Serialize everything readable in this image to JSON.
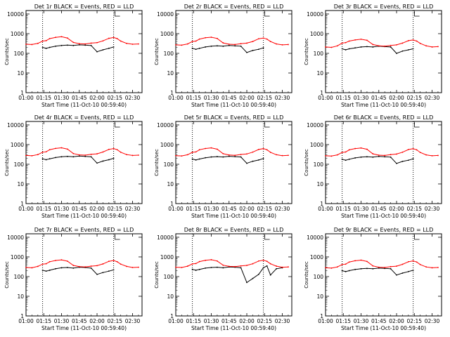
{
  "figure": {
    "background": "#ffffff",
    "events_color": "#000000",
    "lld_color": "#ff0000"
  },
  "chart_data": [
    {
      "type": "line",
      "title": "Det 1r BLACK = Events, RED = LLD",
      "xlabel": "Start Time (11-Oct-10 00:59:40)",
      "ylabel": "Counts/sec",
      "x_tick_labels": [
        "01:00",
        "01:15",
        "01:30",
        "01:45",
        "02:00",
        "02:15",
        "02:30"
      ],
      "y_tick_labels": [
        "1",
        "10",
        "100",
        "1000",
        "10000"
      ],
      "ylim": [
        1,
        15000
      ],
      "y_scale": "log",
      "x": [
        "01:00",
        "01:05",
        "01:10",
        "01:14",
        "01:17",
        "01:20",
        "01:25",
        "01:30",
        "01:35",
        "01:40",
        "01:45",
        "01:50",
        "01:55",
        "02:00",
        "02:05",
        "02:10",
        "02:14",
        "02:17",
        "02:20",
        "02:25",
        "02:30",
        "02:35"
      ],
      "series": [
        {
          "name": "BLACK = Events",
          "values": [
            null,
            null,
            null,
            200,
            180,
            200,
            230,
            250,
            260,
            250,
            270,
            260,
            250,
            120,
            150,
            180,
            210,
            null,
            null,
            null,
            null,
            null
          ]
        },
        {
          "name": "RED = LLD",
          "values": [
            290,
            280,
            320,
            420,
            440,
            560,
            650,
            700,
            600,
            360,
            310,
            300,
            330,
            350,
            430,
            580,
            640,
            560,
            420,
            320,
            290,
            300
          ]
        }
      ]
    },
    {
      "type": "line",
      "title": "Det 2r BLACK = Events, RED = LLD",
      "xlabel": "Start Time (11-Oct-10 00:59:40)",
      "ylabel": "Counts/sec",
      "x_tick_labels": [
        "01:00",
        "01:15",
        "01:30",
        "01:45",
        "02:00",
        "02:15",
        "02:30"
      ],
      "y_tick_labels": [
        "1",
        "10",
        "100",
        "1000",
        "10000"
      ],
      "ylim": [
        1,
        15000
      ],
      "y_scale": "log",
      "x": [
        "01:00",
        "01:05",
        "01:10",
        "01:14",
        "01:17",
        "01:20",
        "01:25",
        "01:30",
        "01:35",
        "01:40",
        "01:45",
        "01:50",
        "01:55",
        "02:00",
        "02:05",
        "02:10",
        "02:14",
        "02:17",
        "02:20",
        "02:25",
        "02:30",
        "02:35"
      ],
      "series": [
        {
          "name": "BLACK = Events",
          "values": [
            null,
            null,
            null,
            180,
            160,
            180,
            210,
            230,
            240,
            230,
            250,
            240,
            230,
            110,
            140,
            160,
            190,
            null,
            null,
            null,
            null,
            null
          ]
        },
        {
          "name": "RED = LLD",
          "values": [
            270,
            260,
            300,
            400,
            420,
            530,
            620,
            660,
            570,
            340,
            290,
            280,
            310,
            330,
            400,
            550,
            600,
            530,
            400,
            300,
            270,
            280
          ]
        }
      ]
    },
    {
      "type": "line",
      "title": "Det 3r BLACK = Events, RED = LLD",
      "xlabel": "Start Time (11-Oct-10 00:59:40)",
      "ylabel": "Counts/sec",
      "x_tick_labels": [
        "01:00",
        "01:15",
        "01:30",
        "01:45",
        "02:00",
        "02:15",
        "02:30"
      ],
      "y_tick_labels": [
        "1",
        "10",
        "100",
        "1000",
        "10000"
      ],
      "ylim": [
        1,
        15000
      ],
      "y_scale": "log",
      "x": [
        "01:00",
        "01:05",
        "01:10",
        "01:14",
        "01:17",
        "01:20",
        "01:25",
        "01:30",
        "01:35",
        "01:40",
        "01:45",
        "01:50",
        "01:55",
        "02:00",
        "02:05",
        "02:10",
        "02:14",
        "02:17",
        "02:20",
        "02:25",
        "02:30",
        "02:35"
      ],
      "series": [
        {
          "name": "BLACK = Events",
          "values": [
            null,
            null,
            null,
            170,
            150,
            170,
            190,
            210,
            220,
            210,
            230,
            220,
            210,
            100,
            130,
            150,
            170,
            null,
            null,
            null,
            null,
            null
          ]
        },
        {
          "name": "RED = LLD",
          "values": [
            210,
            200,
            240,
            330,
            350,
            420,
            480,
            520,
            460,
            280,
            240,
            230,
            250,
            270,
            330,
            440,
            480,
            420,
            320,
            240,
            210,
            220
          ]
        }
      ]
    },
    {
      "type": "line",
      "title": "Det 4r BLACK = Events, RED = LLD",
      "xlabel": "Start Time (11-Oct-10 00:59:40)",
      "ylabel": "Counts/sec",
      "x_tick_labels": [
        "01:00",
        "01:15",
        "01:30",
        "01:45",
        "02:00",
        "02:15",
        "02:30"
      ],
      "y_tick_labels": [
        "1",
        "10",
        "100",
        "1000",
        "10000"
      ],
      "ylim": [
        1,
        15000
      ],
      "y_scale": "log",
      "x": [
        "01:00",
        "01:05",
        "01:10",
        "01:14",
        "01:17",
        "01:20",
        "01:25",
        "01:30",
        "01:35",
        "01:40",
        "01:45",
        "01:50",
        "01:55",
        "02:00",
        "02:05",
        "02:10",
        "02:14",
        "02:17",
        "02:20",
        "02:25",
        "02:30",
        "02:35"
      ],
      "series": [
        {
          "name": "BLACK = Events",
          "values": [
            null,
            null,
            null,
            190,
            170,
            190,
            220,
            240,
            250,
            240,
            260,
            250,
            240,
            115,
            145,
            170,
            200,
            null,
            null,
            null,
            null,
            null
          ]
        },
        {
          "name": "RED = LLD",
          "values": [
            280,
            270,
            310,
            410,
            430,
            550,
            640,
            690,
            590,
            350,
            300,
            290,
            320,
            340,
            420,
            570,
            630,
            550,
            410,
            310,
            280,
            290
          ]
        }
      ]
    },
    {
      "type": "line",
      "title": "Det 5r BLACK = Events, RED = LLD",
      "xlabel": "Start Time (11-Oct-10 00:59:40)",
      "ylabel": "Counts/sec",
      "x_tick_labels": [
        "01:00",
        "01:15",
        "01:30",
        "01:45",
        "02:00",
        "02:15",
        "02:30"
      ],
      "y_tick_labels": [
        "1",
        "10",
        "100",
        "1000",
        "10000"
      ],
      "ylim": [
        1,
        15000
      ],
      "y_scale": "log",
      "x": [
        "01:00",
        "01:05",
        "01:10",
        "01:14",
        "01:17",
        "01:20",
        "01:25",
        "01:30",
        "01:35",
        "01:40",
        "01:45",
        "01:50",
        "01:55",
        "02:00",
        "02:05",
        "02:10",
        "02:14",
        "02:17",
        "02:20",
        "02:25",
        "02:30",
        "02:35"
      ],
      "series": [
        {
          "name": "BLACK = Events",
          "values": [
            null,
            null,
            null,
            185,
            165,
            185,
            215,
            235,
            245,
            235,
            255,
            245,
            235,
            112,
            142,
            165,
            195,
            null,
            null,
            null,
            null,
            null
          ]
        },
        {
          "name": "RED = LLD",
          "values": [
            275,
            265,
            305,
            405,
            425,
            545,
            635,
            680,
            585,
            345,
            295,
            285,
            315,
            335,
            415,
            565,
            625,
            545,
            405,
            305,
            275,
            285
          ]
        }
      ]
    },
    {
      "type": "line",
      "title": "Det 6r BLACK = Events, RED = LLD",
      "xlabel": "Start Time (11-Oct-10 00:59:40)",
      "ylabel": "Counts/sec",
      "x_tick_labels": [
        "01:00",
        "01:15",
        "01:30",
        "01:45",
        "02:00",
        "02:15",
        "02:30"
      ],
      "y_tick_labels": [
        "1",
        "10",
        "100",
        "1000",
        "10000"
      ],
      "ylim": [
        1,
        15000
      ],
      "y_scale": "log",
      "x": [
        "01:00",
        "01:05",
        "01:10",
        "01:14",
        "01:17",
        "01:20",
        "01:25",
        "01:30",
        "01:35",
        "01:40",
        "01:45",
        "01:50",
        "01:55",
        "02:00",
        "02:05",
        "02:10",
        "02:14",
        "02:17",
        "02:20",
        "02:25",
        "02:30",
        "02:35"
      ],
      "series": [
        {
          "name": "BLACK = Events",
          "values": [
            null,
            null,
            null,
            180,
            160,
            180,
            210,
            230,
            240,
            230,
            250,
            240,
            230,
            110,
            140,
            160,
            190,
            null,
            null,
            null,
            null,
            null
          ]
        },
        {
          "name": "RED = LLD",
          "values": [
            270,
            260,
            300,
            400,
            420,
            540,
            630,
            670,
            580,
            340,
            290,
            280,
            310,
            330,
            410,
            560,
            620,
            540,
            400,
            300,
            270,
            280
          ]
        }
      ]
    },
    {
      "type": "line",
      "title": "Det 7r BLACK = Events, RED = LLD",
      "xlabel": "Start Time (11-Oct-10 00:59:40)",
      "ylabel": "Counts/sec",
      "x_tick_labels": [
        "01:00",
        "01:15",
        "01:30",
        "01:45",
        "02:00",
        "02:15",
        "02:30"
      ],
      "y_tick_labels": [
        "1",
        "10",
        "100",
        "1000",
        "10000"
      ],
      "ylim": [
        1,
        15000
      ],
      "y_scale": "log",
      "x": [
        "01:00",
        "01:05",
        "01:10",
        "01:14",
        "01:17",
        "01:20",
        "01:25",
        "01:30",
        "01:35",
        "01:40",
        "01:45",
        "01:50",
        "01:55",
        "02:00",
        "02:05",
        "02:10",
        "02:14",
        "02:17",
        "02:20",
        "02:25",
        "02:30",
        "02:35"
      ],
      "series": [
        {
          "name": "BLACK = Events",
          "values": [
            null,
            null,
            null,
            210,
            190,
            210,
            250,
            280,
            290,
            270,
            300,
            290,
            270,
            130,
            160,
            190,
            220,
            null,
            null,
            null,
            null,
            null
          ]
        },
        {
          "name": "RED = LLD",
          "values": [
            290,
            280,
            330,
            430,
            450,
            570,
            660,
            710,
            610,
            370,
            320,
            310,
            340,
            360,
            440,
            600,
            660,
            570,
            430,
            330,
            290,
            300
          ]
        }
      ]
    },
    {
      "type": "line",
      "title": "Det 8r BLACK = Events, RED = LLD",
      "xlabel": "Start Time (11-Oct-10 00:59:40)",
      "ylabel": "Counts/sec",
      "x_tick_labels": [
        "01:00",
        "01:15",
        "01:30",
        "01:45",
        "02:00",
        "02:15",
        "02:30"
      ],
      "y_tick_labels": [
        "1",
        "10",
        "100",
        "1000",
        "10000"
      ],
      "ylim": [
        1,
        15000
      ],
      "y_scale": "log",
      "x": [
        "01:00",
        "01:05",
        "01:10",
        "01:14",
        "01:17",
        "01:20",
        "01:25",
        "01:30",
        "01:35",
        "01:40",
        "01:45",
        "01:50",
        "01:55",
        "02:00",
        "02:05",
        "02:10",
        "02:14",
        "02:17",
        "02:20",
        "02:25",
        "02:30",
        "02:35"
      ],
      "series": [
        {
          "name": "BLACK = Events",
          "values": [
            null,
            null,
            null,
            230,
            210,
            230,
            270,
            290,
            300,
            280,
            310,
            300,
            280,
            50,
            80,
            130,
            280,
            350,
            120,
            250,
            280,
            null
          ]
        },
        {
          "name": "RED = LLD",
          "values": [
            300,
            290,
            340,
            440,
            460,
            580,
            670,
            720,
            620,
            380,
            330,
            320,
            350,
            370,
            450,
            620,
            680,
            600,
            450,
            340,
            300,
            310
          ]
        }
      ]
    },
    {
      "type": "line",
      "title": "Det 9r BLACK = Events, RED = LLD",
      "xlabel": "Start Time (11-Oct-10 00:59:40)",
      "ylabel": "Counts/sec",
      "x_tick_labels": [
        "01:00",
        "01:15",
        "01:30",
        "01:45",
        "02:00",
        "02:15",
        "02:30"
      ],
      "y_tick_labels": [
        "1",
        "10",
        "100",
        "1000",
        "10000"
      ],
      "ylim": [
        1,
        15000
      ],
      "y_scale": "log",
      "x": [
        "01:00",
        "01:05",
        "01:10",
        "01:14",
        "01:17",
        "01:20",
        "01:25",
        "01:30",
        "01:35",
        "01:40",
        "01:45",
        "01:50",
        "01:55",
        "02:00",
        "02:05",
        "02:10",
        "02:14",
        "02:17",
        "02:20",
        "02:25",
        "02:30",
        "02:35"
      ],
      "series": [
        {
          "name": "BLACK = Events",
          "values": [
            null,
            null,
            null,
            200,
            180,
            200,
            230,
            250,
            260,
            250,
            270,
            260,
            250,
            120,
            150,
            180,
            210,
            null,
            null,
            null,
            null,
            null
          ]
        },
        {
          "name": "RED = LLD",
          "values": [
            280,
            270,
            310,
            410,
            430,
            550,
            640,
            690,
            590,
            350,
            300,
            290,
            320,
            340,
            420,
            570,
            630,
            550,
            410,
            310,
            280,
            290
          ]
        }
      ]
    }
  ]
}
